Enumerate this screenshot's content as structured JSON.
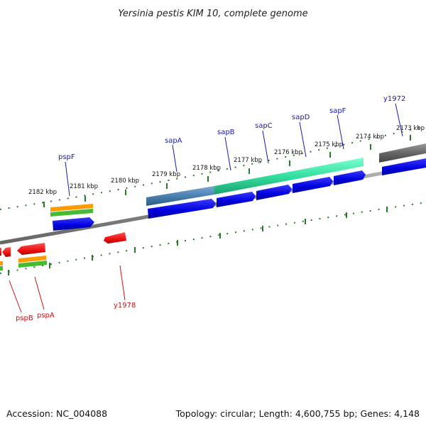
{
  "title": "Yersinia pestis KIM 10, complete genome",
  "footer": {
    "accession": "Accession: NC_004088",
    "summary": "Topology: circular; Length: 4,600,755 bp; Genes: 4,148"
  },
  "ticks": [
    "2182 kbp",
    "2181 kbp",
    "2180 kbp",
    "2179 kbp",
    "2178 kbp",
    "2177 kbp",
    "2176 kbp",
    "2175 kbp",
    "2174 kbp",
    "2173 kbp"
  ],
  "genes": {
    "forward": [
      "pspF",
      "sapA",
      "sapB",
      "sapC",
      "sapD",
      "sapF",
      "y1972"
    ],
    "reverse": [
      "pspB",
      "pspA",
      "y1978"
    ]
  },
  "colors": {
    "forward_label": "#1a1aaa",
    "reverse_label": "#cc1111",
    "cds_forward": "#0000dd",
    "cds_reverse": "#ee1111",
    "tick": "#2a7a2a",
    "backbone": "#8a8a8a",
    "operon": "#33e0a0",
    "operon_start": "#4a80b0",
    "orange": "#ff9a00",
    "green": "#44bb33",
    "gray_feature": "#5a5a5a"
  }
}
